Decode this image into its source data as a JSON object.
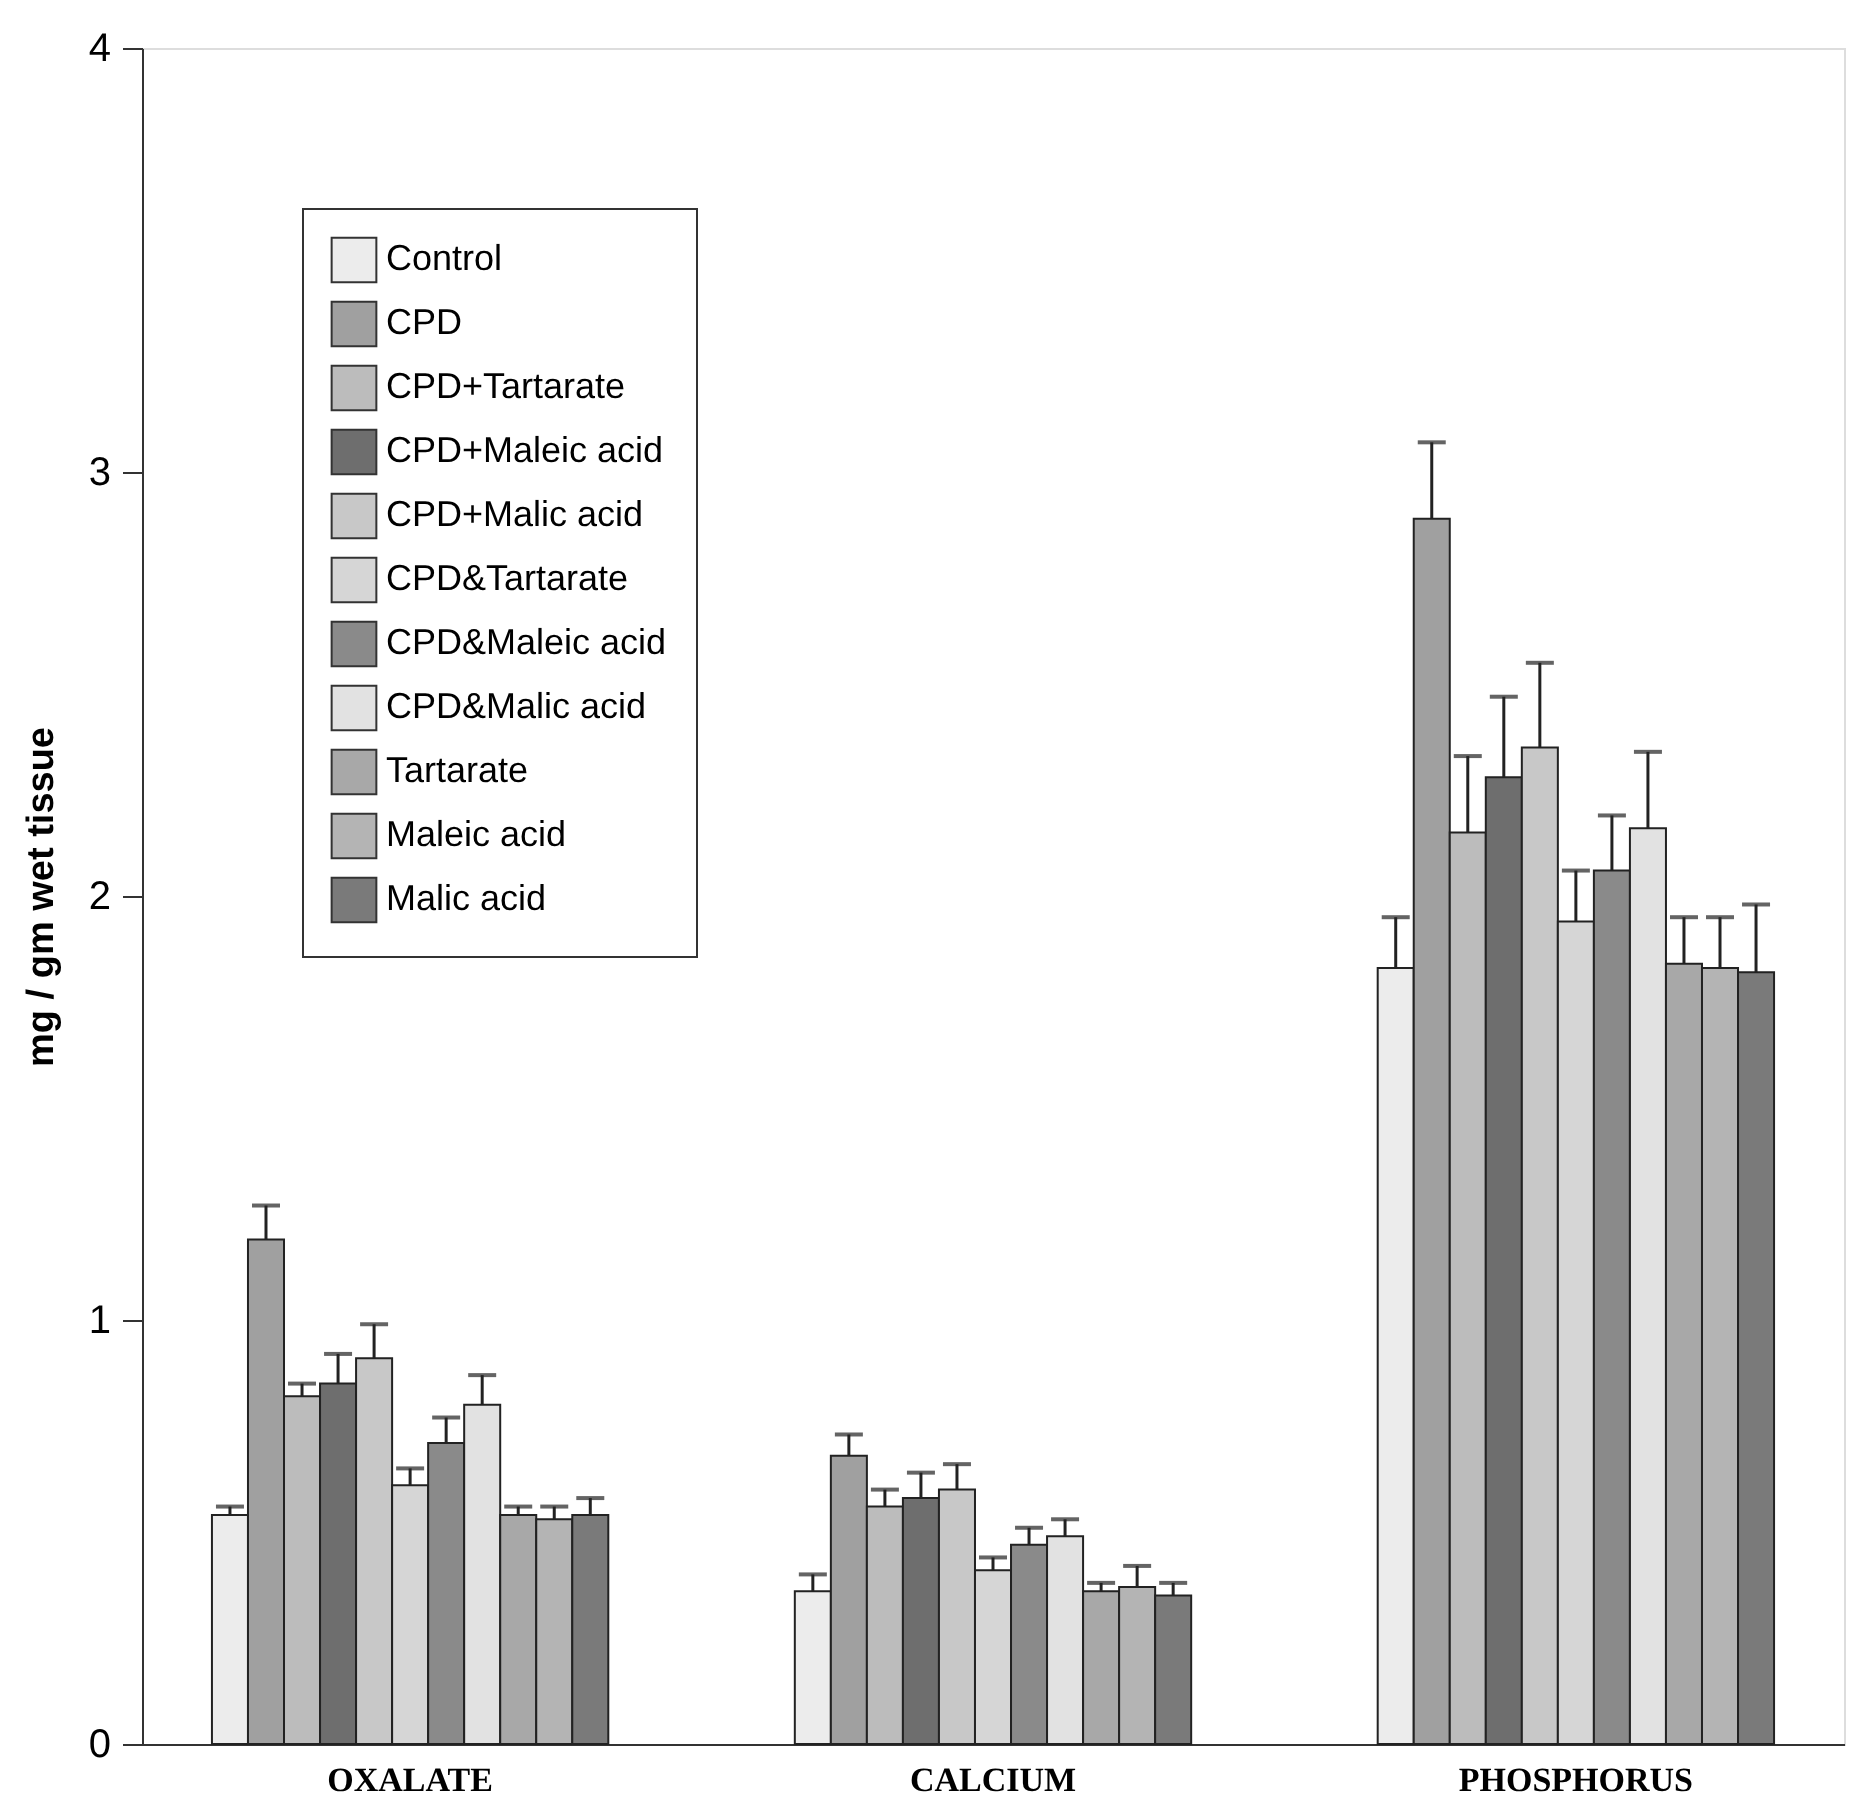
{
  "chart_data": {
    "type": "bar",
    "ylabel": "mg / gm wet tissue",
    "categories": [
      "OXALATE",
      "CALCIUM",
      "PHOSPHORUS"
    ],
    "ylim": [
      0,
      4
    ],
    "yticks": [
      0,
      1,
      2,
      3,
      4
    ],
    "grid": false,
    "legend": "top left",
    "series": [
      {
        "name": "Control",
        "color": "#ececec",
        "values": [
          0.54,
          0.36,
          1.83
        ],
        "errors": [
          0.02,
          0.04,
          0.12
        ]
      },
      {
        "name": "CPD",
        "color": "#a0a0a0",
        "values": [
          1.19,
          0.68,
          2.89
        ],
        "errors": [
          0.08,
          0.05,
          0.18
        ]
      },
      {
        "name": "CPD+Tartarate",
        "color": "#bcbcbc",
        "values": [
          0.82,
          0.56,
          2.15
        ],
        "errors": [
          0.03,
          0.04,
          0.18
        ]
      },
      {
        "name": "CPD+Maleic acid",
        "color": "#6e6e6e",
        "values": [
          0.85,
          0.58,
          2.28
        ],
        "errors": [
          0.07,
          0.06,
          0.19
        ]
      },
      {
        "name": "CPD+Malic acid",
        "color": "#c8c8c8",
        "values": [
          0.91,
          0.6,
          2.35
        ],
        "errors": [
          0.08,
          0.06,
          0.2
        ]
      },
      {
        "name": "CPD&Tartarate",
        "color": "#d6d6d6",
        "values": [
          0.61,
          0.41,
          1.94
        ],
        "errors": [
          0.04,
          0.03,
          0.12
        ]
      },
      {
        "name": "CPD&Maleic acid",
        "color": "#8a8a8a",
        "values": [
          0.71,
          0.47,
          2.06
        ],
        "errors": [
          0.06,
          0.04,
          0.13
        ]
      },
      {
        "name": "CPD&Malic acid",
        "color": "#e2e2e2",
        "values": [
          0.8,
          0.49,
          2.16
        ],
        "errors": [
          0.07,
          0.04,
          0.18
        ]
      },
      {
        "name": "Tartarate",
        "color": "#a8a8a8",
        "values": [
          0.54,
          0.36,
          1.84
        ],
        "errors": [
          0.02,
          0.02,
          0.11
        ]
      },
      {
        "name": "Maleic acid",
        "color": "#b4b4b4",
        "values": [
          0.53,
          0.37,
          1.83
        ],
        "errors": [
          0.03,
          0.05,
          0.12
        ]
      },
      {
        "name": "Malic acid",
        "color": "#7a7a7a",
        "values": [
          0.54,
          0.35,
          1.82
        ],
        "errors": [
          0.04,
          0.03,
          0.16
        ]
      }
    ]
  }
}
